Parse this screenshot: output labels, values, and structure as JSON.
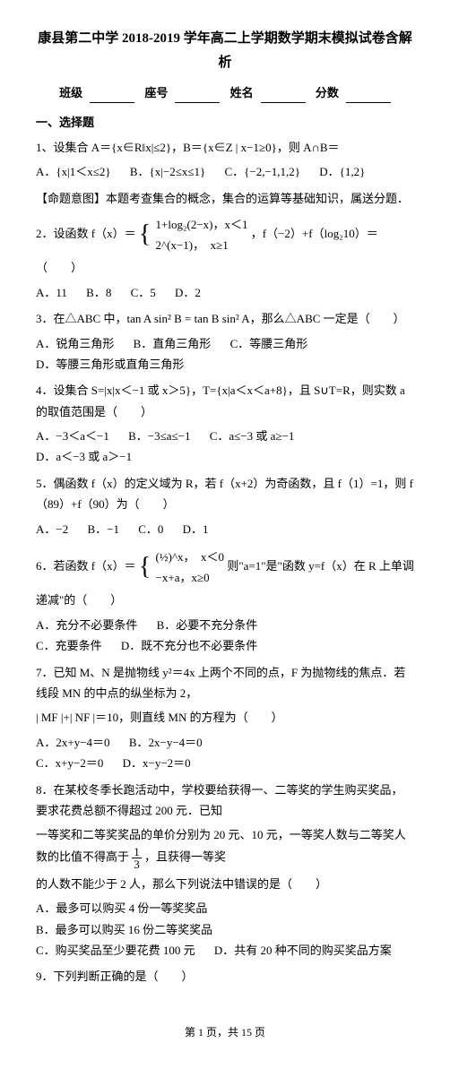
{
  "doc": {
    "title_line": "康县第二中学 2018-2019 学年高二上学期数学期末模拟试卷含解析",
    "header": {
      "class": "班级",
      "seat": "座号",
      "name": "姓名",
      "score": "分数"
    },
    "section1": "一、选择题",
    "q1": {
      "stem_a": "1、设集合 A＝{x∈R‖x|≤2}，B＝{x∈Z | x−1≥0}，则 A∩B＝",
      "optA": "A．{x|1＜x≤2}",
      "optB": "B．{x|−2≤x≤1}",
      "optC": "C．{−2,−1,1,2}",
      "optD": "D．{1,2}",
      "note": "【命题意图】本题考查集合的概念，集合的运算等基础知识，属送分题．"
    },
    "q2": {
      "stem": "2．设函数 f（x）＝",
      "case1": "1+log₂(2−x)，x＜1",
      "case2": "2^(x−1)，　x≥1",
      "stem_end": "，f（−2）+f（log₂10）＝（　　）",
      "optA": "A．11",
      "optB": "B．8",
      "optC": "C．5",
      "optD": "D．2"
    },
    "q3": {
      "stem": "3．在△ABC 中，tan A sin² B = tan B sin² A，那么△ABC 一定是（　　）",
      "optA": "A．锐角三角形",
      "optB": "B．直角三角形",
      "optC": "C．等腰三角形",
      "optD": "D．等腰三角形或直角三角形"
    },
    "q4": {
      "stem": "4．设集合 S=|x|x＜−1 或 x＞5}，T={x|a＜x＜a+8}，且 S∪T=R，则实数 a 的取值范围是（　　）",
      "optA": "A．−3＜a＜−1",
      "optB": "B．−3≤a≤−1",
      "optC": "C．a≤−3 或 a≥−1",
      "optD": "D．a＜−3 或 a＞−1"
    },
    "q5": {
      "stem": "5．偶函数 f（x）的定义域为 R，若 f（x+2）为奇函数，且 f（1）=1，则 f（89）+f（90）为（　　）",
      "optA": "A．−2",
      "optB": "B．−1",
      "optC": "C．0",
      "optD": "D．1"
    },
    "q6": {
      "stem": "6．若函数 f（x）＝",
      "case1": "(½)^x，　x＜0",
      "case2": "−x+a，x≥0",
      "stem_end": "则\"a=1\"是\"函数 y=f（x）在 R 上单调递减\"的（　　）",
      "optA": "A．充分不必要条件",
      "optB": "B．必要不充分条件",
      "optC": "C．充要条件",
      "optD": "D．既不充分也不必要条件"
    },
    "q7": {
      "stem1": "7．已知 M、N 是抛物线 y²＝4x 上两个不同的点，F 为抛物线的焦点．若线段 MN 的中点的纵坐标为 2，",
      "stem2": "| MF |+| NF |＝10，则直线 MN 的方程为（　　）",
      "optA": "A．2x+y−4＝0",
      "optB": "B．2x−y−4＝0",
      "optC": "C．x+y−2＝0",
      "optD": "D．x−y−2＝0"
    },
    "q8": {
      "stem1": "8．在某校冬季长跑活动中，学校要给获得一、二等奖的学生购买奖品，要求花费总额不得超过 200 元．已知",
      "stem2": "一等奖和二等奖奖品的单价分别为 20 元、10 元，一等奖人数与二等奖人数的比值不得高于",
      "stem3": "，且获得一等奖",
      "frac_n": "1",
      "frac_d": "3",
      "stem4": "的人数不能少于 2 人，那么下列说法中错误的是（　　）",
      "optA": "A．最多可以购买 4 份一等奖奖品",
      "optB": "B．最多可以购买 16 份二等奖奖品",
      "optC": "C．购买奖品至少要花费 100 元",
      "optD": "D．共有 20 种不同的购买奖品方案"
    },
    "q9": {
      "stem": "9．下列判断正确的是（　　）"
    },
    "footer": "第 1 页，共 15 页"
  }
}
